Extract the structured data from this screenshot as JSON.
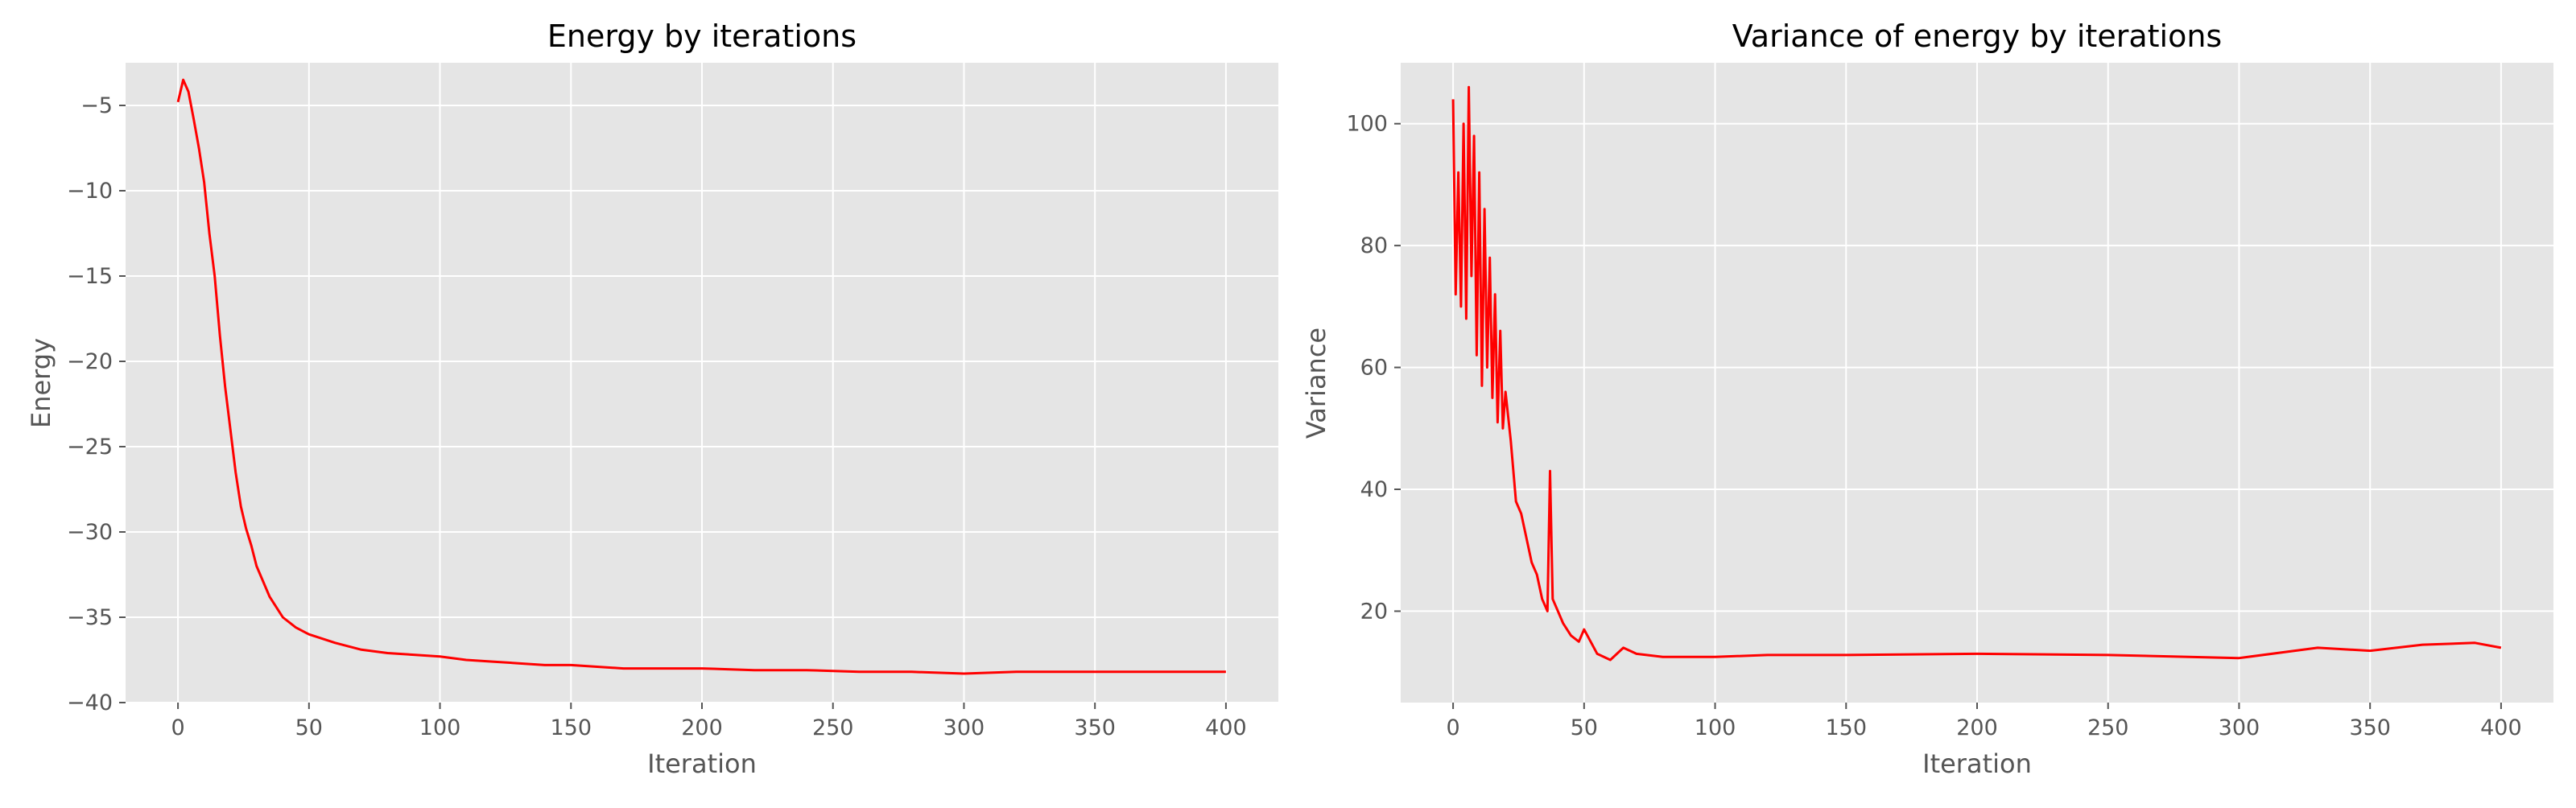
{
  "chart_data": [
    {
      "type": "line",
      "title": "Energy by iterations",
      "xlabel": "Iteration",
      "ylabel": "Energy",
      "xlim": [
        -20,
        420
      ],
      "ylim": [
        -40,
        -2.5
      ],
      "xticks": [
        0,
        50,
        100,
        150,
        200,
        250,
        300,
        350,
        400
      ],
      "yticks": [
        -40,
        -35,
        -30,
        -25,
        -20,
        -15,
        -10,
        -5
      ],
      "grid": true,
      "series": [
        {
          "color": "#ff0000",
          "x": [
            0,
            2,
            4,
            6,
            8,
            10,
            12,
            14,
            16,
            18,
            20,
            22,
            24,
            26,
            28,
            30,
            35,
            40,
            45,
            50,
            60,
            70,
            80,
            90,
            100,
            110,
            120,
            130,
            140,
            150,
            160,
            170,
            180,
            190,
            200,
            220,
            240,
            260,
            280,
            300,
            320,
            340,
            360,
            380,
            400
          ],
          "y": [
            -4.8,
            -3.5,
            -4.2,
            -5.8,
            -7.5,
            -9.5,
            -12.5,
            -15.0,
            -18.5,
            -21.5,
            -24.0,
            -26.5,
            -28.5,
            -29.8,
            -30.8,
            -32.0,
            -33.8,
            -35.0,
            -35.6,
            -36.0,
            -36.5,
            -36.9,
            -37.1,
            -37.2,
            -37.3,
            -37.5,
            -37.6,
            -37.7,
            -37.8,
            -37.8,
            -37.9,
            -38.0,
            -38.0,
            -38.0,
            -38.0,
            -38.1,
            -38.1,
            -38.2,
            -38.2,
            -38.3,
            -38.2,
            -38.2,
            -38.2,
            -38.2,
            -38.2
          ]
        }
      ]
    },
    {
      "type": "line",
      "title": "Variance of energy by iterations",
      "xlabel": "Iteration",
      "ylabel": "Variance",
      "xlim": [
        -20,
        420
      ],
      "ylim": [
        5,
        110
      ],
      "xticks": [
        0,
        50,
        100,
        150,
        200,
        250,
        300,
        350,
        400
      ],
      "yticks": [
        20,
        40,
        60,
        80,
        100
      ],
      "grid": true,
      "series": [
        {
          "color": "#ff0000",
          "x": [
            0,
            1,
            2,
            3,
            4,
            5,
            6,
            7,
            8,
            9,
            10,
            11,
            12,
            13,
            14,
            15,
            16,
            17,
            18,
            19,
            20,
            22,
            24,
            26,
            28,
            30,
            32,
            34,
            36,
            37,
            38,
            40,
            42,
            45,
            48,
            50,
            55,
            60,
            65,
            70,
            80,
            100,
            120,
            150,
            200,
            250,
            300,
            330,
            350,
            370,
            390,
            400
          ],
          "y": [
            104,
            72,
            92,
            70,
            100,
            68,
            106,
            75,
            98,
            62,
            92,
            57,
            86,
            60,
            78,
            55,
            72,
            51,
            66,
            50,
            56,
            48,
            38,
            36,
            32,
            28,
            26,
            22,
            20,
            43,
            22,
            20,
            18,
            16,
            15,
            17,
            13,
            12,
            14,
            13,
            12.5,
            12.5,
            12.8,
            12.8,
            13.0,
            12.8,
            12.3,
            14.0,
            13.5,
            14.5,
            14.8,
            14.0
          ]
        }
      ]
    }
  ]
}
